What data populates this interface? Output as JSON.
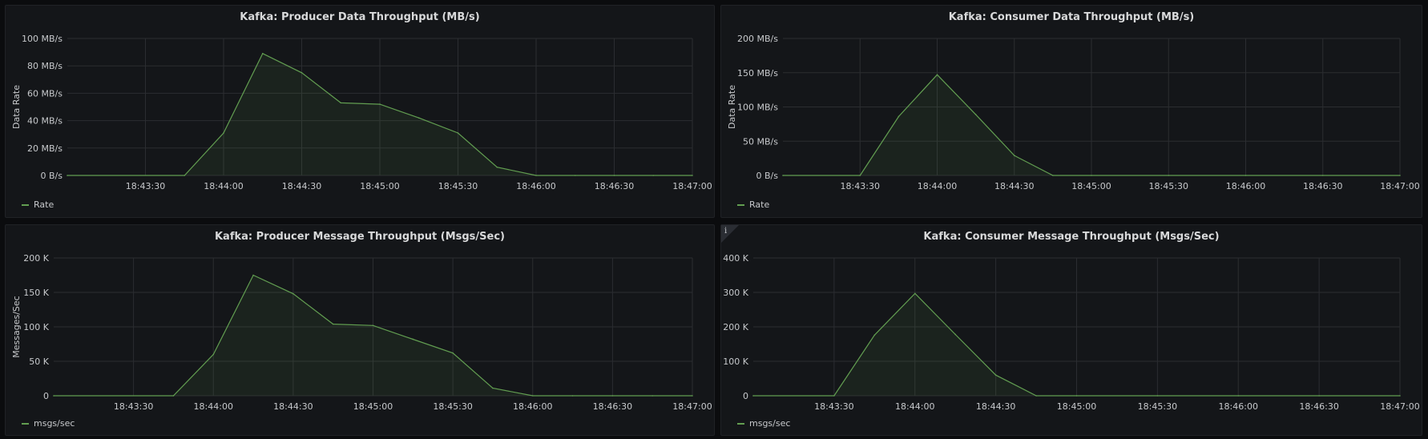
{
  "colors": {
    "series": "#629e51",
    "fill": "rgba(98,158,81,0.10)"
  },
  "chart_data": [
    {
      "type": "area",
      "title": "Kafka: Producer Data Throughput (MB/s)",
      "ylabel": "Data Rate",
      "y_unit_suffix": "MB/s",
      "ylim": [
        0,
        100
      ],
      "y_ticks": [
        0,
        20,
        40,
        60,
        80,
        100
      ],
      "y_tick_labels": [
        "0 B/s",
        "20 MB/s",
        "40 MB/s",
        "60 MB/s",
        "80 MB/s",
        "100 MB/s"
      ],
      "xlim": [
        "18:43:00",
        "18:47:00"
      ],
      "x_ticks": [
        "18:43:30",
        "18:44:00",
        "18:44:30",
        "18:45:00",
        "18:45:30",
        "18:46:00",
        "18:46:30",
        "18:47:00"
      ],
      "grid": true,
      "legend": "bottom-left",
      "series": [
        {
          "name": "Rate",
          "x": [
            "18:43:00",
            "18:43:45",
            "18:44:00",
            "18:44:15",
            "18:44:30",
            "18:44:45",
            "18:45:00",
            "18:45:15",
            "18:45:30",
            "18:45:45",
            "18:46:00",
            "18:46:15",
            "18:46:30",
            "18:46:45",
            "18:47:00"
          ],
          "values": [
            0,
            0,
            31,
            89,
            75,
            53,
            52,
            42,
            31,
            6,
            0,
            0,
            0,
            0,
            0
          ]
        }
      ]
    },
    {
      "type": "area",
      "title": "Kafka: Consumer Data Throughput (MB/s)",
      "ylabel": "Data Rate",
      "y_unit_suffix": "MB/s",
      "ylim": [
        0,
        200
      ],
      "y_ticks": [
        0,
        50,
        100,
        150,
        200
      ],
      "y_tick_labels": [
        "0 B/s",
        "50 MB/s",
        "100 MB/s",
        "150 MB/s",
        "200 MB/s"
      ],
      "xlim": [
        "18:43:00",
        "18:47:00"
      ],
      "x_ticks": [
        "18:43:30",
        "18:44:00",
        "18:44:30",
        "18:45:00",
        "18:45:30",
        "18:46:00",
        "18:46:30",
        "18:47:00"
      ],
      "grid": true,
      "legend": "bottom-left",
      "series": [
        {
          "name": "Rate",
          "x": [
            "18:43:00",
            "18:43:30",
            "18:43:45",
            "18:44:00",
            "18:44:15",
            "18:44:30",
            "18:44:45",
            "18:45:00",
            "18:45:30",
            "18:46:00",
            "18:46:30",
            "18:47:00"
          ],
          "values": [
            0,
            0,
            86,
            147,
            89,
            29,
            0,
            0,
            0,
            0,
            0,
            0
          ]
        }
      ]
    },
    {
      "type": "area",
      "title": "Kafka: Producer Message Throughput (Msgs/Sec)",
      "ylabel": "Messages/Sec",
      "ylim": [
        0,
        200000
      ],
      "y_ticks": [
        0,
        50000,
        100000,
        150000,
        200000
      ],
      "y_tick_labels": [
        "0",
        "50 K",
        "100 K",
        "150 K",
        "200 K"
      ],
      "xlim": [
        "18:43:00",
        "18:47:00"
      ],
      "x_ticks": [
        "18:43:30",
        "18:44:00",
        "18:44:30",
        "18:45:00",
        "18:45:30",
        "18:46:00",
        "18:46:30",
        "18:47:00"
      ],
      "grid": true,
      "legend": "bottom-left",
      "series": [
        {
          "name": "msgs/sec",
          "x": [
            "18:43:00",
            "18:43:45",
            "18:44:00",
            "18:44:15",
            "18:44:30",
            "18:44:45",
            "18:45:00",
            "18:45:15",
            "18:45:30",
            "18:45:45",
            "18:46:00",
            "18:46:15",
            "18:46:30",
            "18:46:45",
            "18:47:00"
          ],
          "values": [
            0,
            0,
            60000,
            175000,
            148000,
            104000,
            102000,
            82000,
            62000,
            11000,
            0,
            0,
            0,
            0,
            0
          ]
        }
      ]
    },
    {
      "type": "area",
      "title": "Kafka: Consumer Message Throughput (Msgs/Sec)",
      "ylabel": "",
      "ylim": [
        0,
        400000
      ],
      "y_ticks": [
        0,
        100000,
        200000,
        300000,
        400000
      ],
      "y_tick_labels": [
        "0",
        "100 K",
        "200 K",
        "300 K",
        "400 K"
      ],
      "xlim": [
        "18:43:00",
        "18:47:00"
      ],
      "x_ticks": [
        "18:43:30",
        "18:44:00",
        "18:44:30",
        "18:45:00",
        "18:45:30",
        "18:46:00",
        "18:46:30",
        "18:47:00"
      ],
      "grid": true,
      "legend": "bottom-left",
      "series": [
        {
          "name": "msgs/sec",
          "x": [
            "18:43:00",
            "18:43:30",
            "18:43:45",
            "18:44:00",
            "18:44:15",
            "18:44:30",
            "18:44:45",
            "18:45:00",
            "18:45:30",
            "18:46:00",
            "18:46:30",
            "18:47:00"
          ],
          "values": [
            0,
            0,
            176000,
            297000,
            178000,
            60000,
            0,
            0,
            0,
            0,
            0,
            0
          ]
        }
      ]
    }
  ],
  "panel_info_icon": "info-icon",
  "info_glyph": "i"
}
